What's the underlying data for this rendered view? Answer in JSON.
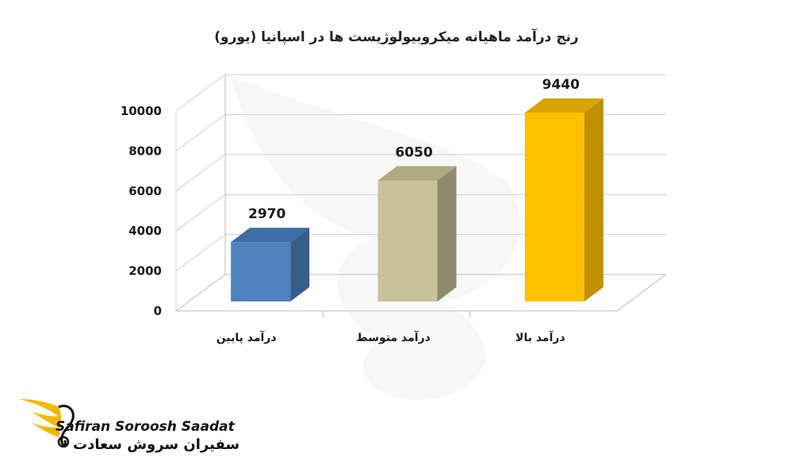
{
  "chart_data": {
    "type": "bar",
    "title": "رنج درآمد ماهیانه میکروبیولوژیست ها در اسپانیا (یورو)",
    "categories": [
      "درآمد پایین",
      "درآمد متوسط",
      "درآمد بالا"
    ],
    "values": [
      2970,
      6050,
      9440
    ],
    "data_labels": [
      "2970",
      "6050",
      "9440"
    ],
    "colors": [
      "#4F81BD",
      "#C9C29A",
      "#FFC000"
    ],
    "side_colors": [
      "#385D8A",
      "#8E8A6B",
      "#BF9000"
    ],
    "top_colors": [
      "#3E6DA8",
      "#B0AA83",
      "#D9A300"
    ],
    "ylim": [
      0,
      10000
    ],
    "yticks": [
      0,
      2000,
      4000,
      6000,
      8000,
      10000
    ],
    "grid": true,
    "style": "3d-column"
  },
  "brand": {
    "name_en": "Safiran Soroosh Saadat",
    "name_fa": "سفیران سروش سعادت",
    "accent": "#F2B800"
  }
}
